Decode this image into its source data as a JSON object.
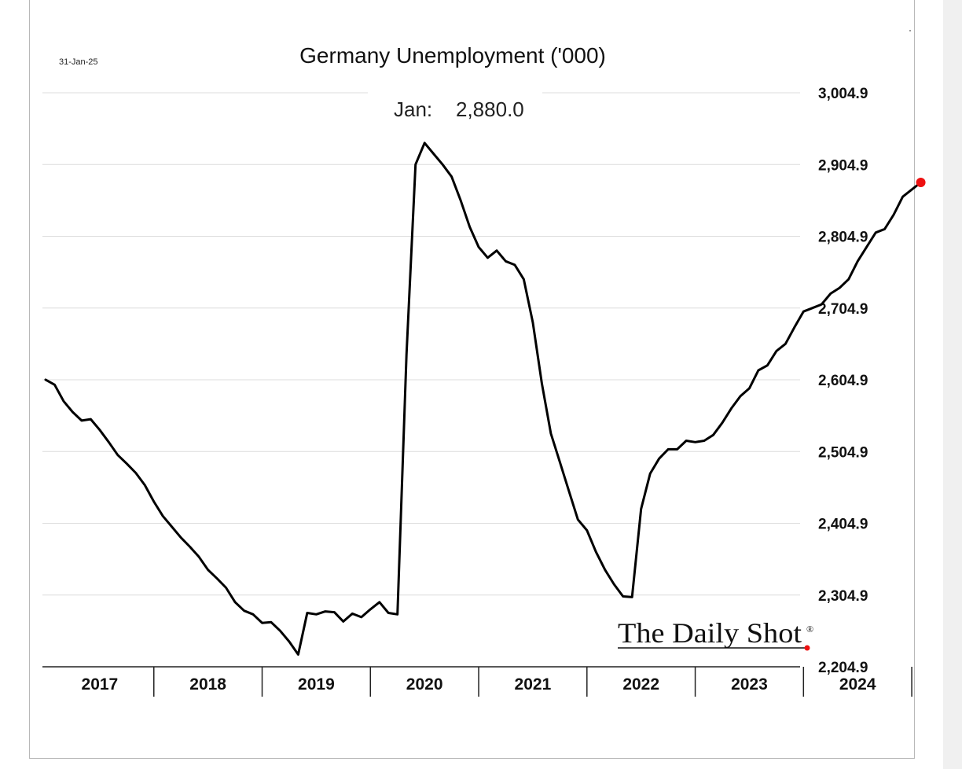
{
  "header": {
    "date_stamp": "31-Jan-25",
    "latest_label": "Jan:",
    "latest_value": "2,880.0"
  },
  "branding": {
    "logo_text": "The Daily Shot",
    "logo_mark": "®"
  },
  "colors": {
    "line": "#000000",
    "marker": "#ee1111",
    "grid": "#dcdcdc"
  },
  "chart_data": {
    "type": "line",
    "title": "Germany Unemployment ('000)",
    "xlabel": "",
    "ylabel": "",
    "x_start": "2017-01",
    "x_end": "2025-01",
    "x_ticks": [
      "2017",
      "2018",
      "2019",
      "2020",
      "2021",
      "2022",
      "2023",
      "2024"
    ],
    "ylim": [
      2204.9,
      3004.9
    ],
    "y_ticks": [
      "3,004.9",
      "2,904.9",
      "2,804.9",
      "2,704.9",
      "2,604.9",
      "2,504.9",
      "2,404.9",
      "2,304.9",
      "2,204.9"
    ],
    "y_tick_values": [
      3004.9,
      2904.9,
      2804.9,
      2704.9,
      2604.9,
      2504.9,
      2404.9,
      2304.9,
      2204.9
    ],
    "grid": true,
    "axis_side": "right",
    "series": [
      {
        "values": [
          2605,
          2598,
          2575,
          2560,
          2548,
          2550,
          2535,
          2518,
          2500,
          2488,
          2475,
          2458,
          2435,
          2415,
          2400,
          2385,
          2372,
          2358,
          2340,
          2328,
          2315,
          2295,
          2283,
          2278,
          2266,
          2267,
          2255,
          2240,
          2222,
          2280,
          2278,
          2282,
          2281,
          2268,
          2279,
          2274,
          2285,
          2295,
          2280,
          2278,
          2640,
          2905,
          2935,
          2920,
          2905,
          2888,
          2855,
          2818,
          2790,
          2775,
          2785,
          2770,
          2765,
          2745,
          2685,
          2600,
          2530,
          2490,
          2450,
          2410,
          2395,
          2365,
          2340,
          2320,
          2303,
          2302,
          2425,
          2474,
          2495,
          2508,
          2508,
          2520,
          2518,
          2520,
          2528,
          2545,
          2565,
          2582,
          2593,
          2618,
          2625,
          2645,
          2655,
          2678,
          2700,
          2705,
          2710,
          2725,
          2733,
          2745,
          2770,
          2790,
          2810,
          2815,
          2835,
          2860,
          2870,
          2880
        ]
      }
    ],
    "last_point": {
      "x": "2025-01",
      "y": 2880.0
    }
  }
}
